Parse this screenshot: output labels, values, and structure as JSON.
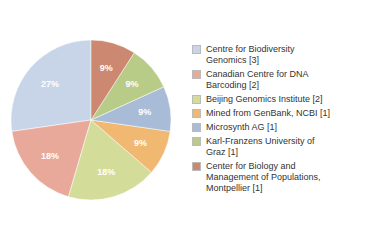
{
  "chart_data": {
    "type": "pie",
    "categories": [
      "Centre for Biodiversity\nGenomics [3]",
      "Canadian Centre for DNA\nBarcoding [2]",
      "Beijing Genomics Institute [2]",
      "Mined from GenBank, NCBI [1]",
      "Microsynth AG [1]",
      "Karl-Franzens University of\nGraz [1]",
      "Center for Biology and\nManagement of Populations,\nMontpellier [1]"
    ],
    "values": [
      27,
      18,
      18,
      9,
      9,
      9,
      9
    ],
    "value_labels": [
      "27%",
      "18%",
      "18%",
      "9%",
      "9%",
      "9%",
      "9%"
    ],
    "colors": [
      "#c8d5e8",
      "#e8a99a",
      "#d4dc9a",
      "#f0b870",
      "#a8bcd8",
      "#b8cc88",
      "#cc8870"
    ],
    "data_labels": true,
    "legend": "right"
  }
}
